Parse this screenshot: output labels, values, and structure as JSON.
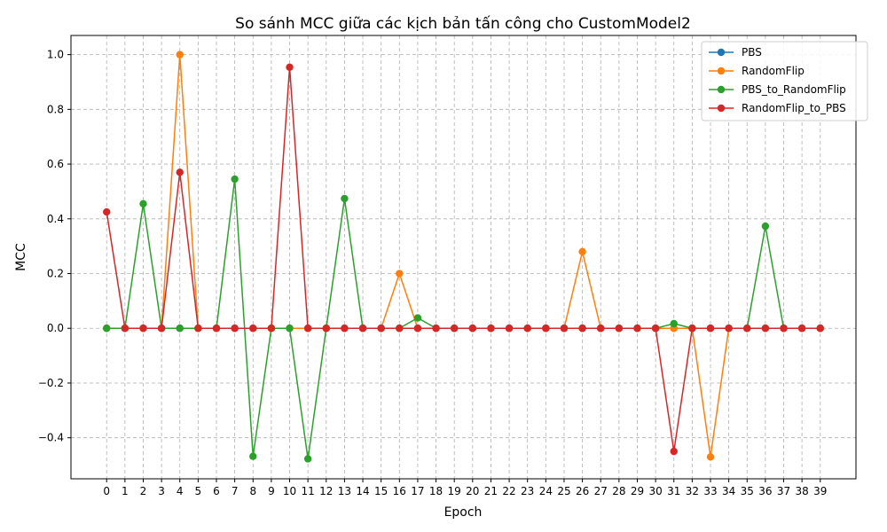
{
  "chart_data": {
    "type": "line",
    "title": "So sánh MCC giữa các kịch bản tấn công cho CustomModel2",
    "xlabel": "Epoch",
    "ylabel": "MCC",
    "x": [
      0,
      1,
      2,
      3,
      4,
      5,
      6,
      7,
      8,
      9,
      10,
      11,
      12,
      13,
      14,
      15,
      16,
      17,
      18,
      19,
      20,
      21,
      22,
      23,
      24,
      25,
      26,
      27,
      28,
      29,
      30,
      31,
      32,
      33,
      34,
      35,
      36,
      37,
      38,
      39
    ],
    "xlim": [
      -1.95,
      40.95
    ],
    "ylim": [
      -0.55,
      1.07
    ],
    "yticks": [
      -0.4,
      -0.2,
      0.0,
      0.2,
      0.4,
      0.6,
      0.8,
      1.0
    ],
    "ytick_labels": [
      "−0.4",
      "−0.2",
      "0.0",
      "0.2",
      "0.4",
      "0.6",
      "0.8",
      "1.0"
    ],
    "grid": true,
    "legend_position": "top-right",
    "series": [
      {
        "name": "PBS",
        "color": "#1f77b4",
        "marker": "circle",
        "values": [
          0,
          0,
          0,
          0,
          0,
          0,
          0,
          0,
          0,
          0,
          0,
          0,
          0,
          0,
          0,
          0,
          0,
          0,
          0,
          0,
          0,
          0,
          0,
          0,
          0,
          0,
          0,
          0,
          0,
          0,
          0,
          0,
          0,
          0,
          0,
          0,
          0,
          0,
          0,
          0
        ]
      },
      {
        "name": "RandomFlip",
        "color": "#ff7f0e",
        "marker": "circle",
        "values": [
          0,
          0,
          0,
          0,
          1.0,
          0,
          0,
          0,
          0,
          0,
          0,
          0,
          0,
          0,
          0,
          0,
          0.2,
          0,
          0,
          0,
          0,
          0,
          0,
          0,
          0,
          0,
          0.28,
          0,
          0,
          0,
          0,
          0,
          0,
          -0.47,
          0,
          0,
          0,
          0,
          0,
          0
        ]
      },
      {
        "name": "PBS_to_RandomFlip",
        "color": "#2ca02c",
        "marker": "circle",
        "values": [
          0,
          0,
          0.455,
          0,
          0,
          0,
          0,
          0.545,
          -0.468,
          0,
          0,
          -0.477,
          0,
          0.474,
          0,
          0,
          0,
          0.038,
          0,
          0,
          0,
          0,
          0,
          0,
          0,
          0,
          0,
          0,
          0,
          0,
          0,
          0.017,
          0,
          0,
          0,
          0,
          0.373,
          0,
          0,
          0
        ]
      },
      {
        "name": "RandomFlip_to_PBS",
        "color": "#d62728",
        "marker": "circle",
        "values": [
          0.425,
          0,
          0,
          0,
          0.57,
          0,
          0,
          0,
          0,
          0,
          0.954,
          0,
          0,
          0,
          0,
          0,
          0,
          0,
          0,
          0,
          0,
          0,
          0,
          0,
          0,
          0,
          0,
          0,
          0,
          0,
          0,
          -0.45,
          0,
          0,
          0,
          0,
          0,
          0,
          0,
          0
        ]
      }
    ]
  }
}
